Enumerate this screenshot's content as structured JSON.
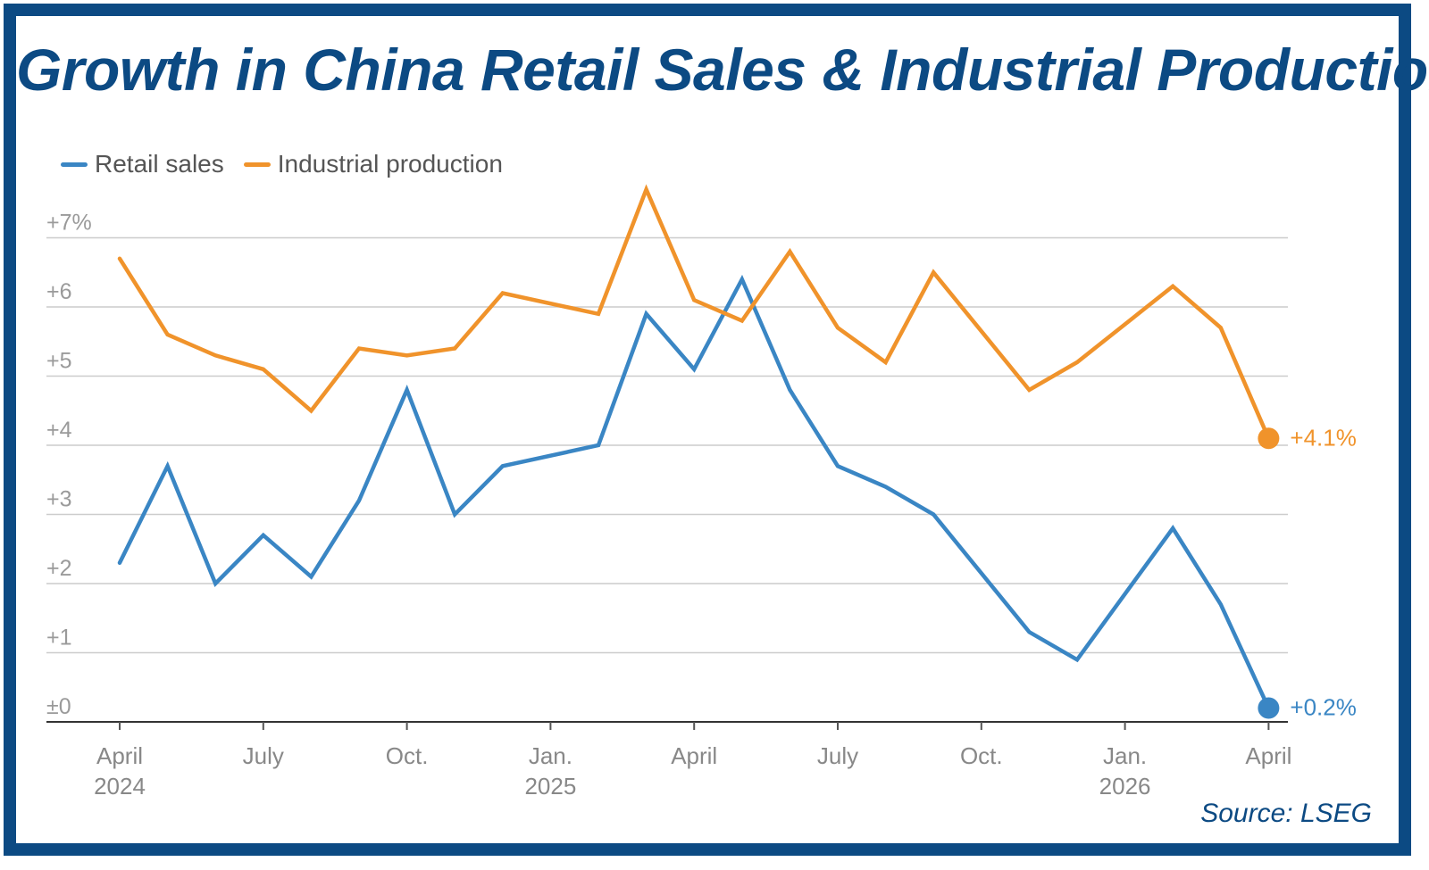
{
  "title": "Growth in China Retail Sales & Industrial Production",
  "source": "Source: LSEG",
  "colors": {
    "frame": "#0c4a83",
    "retail": "#3a86c4",
    "industrial": "#f0932b",
    "grid": "#cccccc"
  },
  "chart_data": {
    "type": "line",
    "ylim": [
      0,
      7
    ],
    "grid": true,
    "legend": "top-left",
    "y_ticks": [
      "±0",
      "+1",
      "+2",
      "+3",
      "+4",
      "+5",
      "+6",
      "+7%"
    ],
    "x": [
      "2024-04",
      "2024-05",
      "2024-06",
      "2024-07",
      "2024-08",
      "2024-09",
      "2024-10",
      "2024-11",
      "2024-12",
      "2025-01",
      "2025-02",
      "2025-03",
      "2025-04",
      "2025-05",
      "2025-06",
      "2025-07",
      "2025-08",
      "2025-09",
      "2025-10",
      "2025-11",
      "2025-12",
      "2026-01",
      "2026-02",
      "2026-03",
      "2026-04"
    ],
    "x_tick_labels": [
      {
        "line1": "April",
        "line2": "2024"
      },
      {
        "line1": "July",
        "line2": ""
      },
      {
        "line1": "Oct.",
        "line2": ""
      },
      {
        "line1": "Jan.",
        "line2": "2025"
      },
      {
        "line1": "April",
        "line2": ""
      },
      {
        "line1": "July",
        "line2": ""
      },
      {
        "line1": "Oct.",
        "line2": ""
      },
      {
        "line1": "Jan.",
        "line2": "2026"
      },
      {
        "line1": "April",
        "line2": ""
      }
    ],
    "series": [
      {
        "name": "Retail sales",
        "color": "#3a86c4",
        "end_label": "+0.2%",
        "points": [
          [
            "2024-04",
            2.3
          ],
          [
            "2024-05",
            3.7
          ],
          [
            "2024-06",
            2.0
          ],
          [
            "2024-07",
            2.7
          ],
          [
            "2024-08",
            2.1
          ],
          [
            "2024-09",
            3.2
          ],
          [
            "2024-10",
            4.8
          ],
          [
            "2024-11",
            3.0
          ],
          [
            "2024-12",
            3.7
          ],
          [
            "2025-02",
            4.0
          ],
          [
            "2025-03",
            5.9
          ],
          [
            "2025-04",
            5.1
          ],
          [
            "2025-05",
            6.4
          ],
          [
            "2025-06",
            4.8
          ],
          [
            "2025-07",
            3.7
          ],
          [
            "2025-08",
            3.4
          ],
          [
            "2025-09",
            3.0
          ],
          [
            "2025-11",
            1.3
          ],
          [
            "2025-12",
            0.9
          ],
          [
            "2026-02",
            2.8
          ],
          [
            "2026-03",
            1.7
          ],
          [
            "2026-04",
            0.2
          ]
        ]
      },
      {
        "name": "Industrial production",
        "color": "#f0932b",
        "end_label": "+4.1%",
        "points": [
          [
            "2024-04",
            6.7
          ],
          [
            "2024-05",
            5.6
          ],
          [
            "2024-06",
            5.3
          ],
          [
            "2024-07",
            5.1
          ],
          [
            "2024-08",
            4.5
          ],
          [
            "2024-09",
            5.4
          ],
          [
            "2024-10",
            5.3
          ],
          [
            "2024-11",
            5.4
          ],
          [
            "2024-12",
            6.2
          ],
          [
            "2025-02",
            5.9
          ],
          [
            "2025-03",
            7.7
          ],
          [
            "2025-04",
            6.1
          ],
          [
            "2025-05",
            5.8
          ],
          [
            "2025-06",
            6.8
          ],
          [
            "2025-07",
            5.7
          ],
          [
            "2025-08",
            5.2
          ],
          [
            "2025-09",
            6.5
          ],
          [
            "2025-11",
            4.8
          ],
          [
            "2025-12",
            5.2
          ],
          [
            "2026-02",
            6.3
          ],
          [
            "2026-03",
            5.7
          ],
          [
            "2026-04",
            4.1
          ]
        ]
      }
    ]
  }
}
